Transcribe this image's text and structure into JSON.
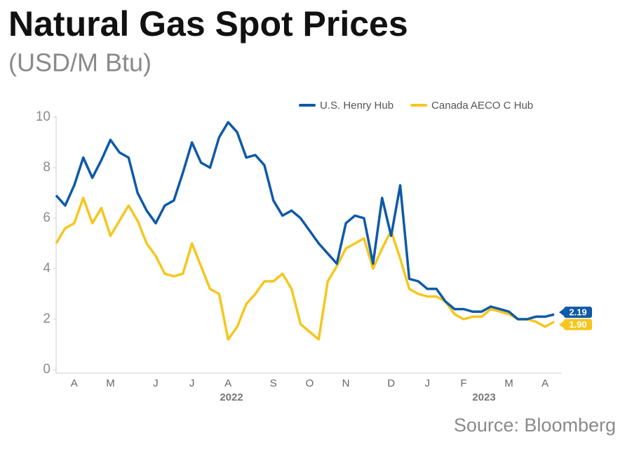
{
  "chart_data": {
    "type": "line",
    "title": "Natural Gas Spot Prices",
    "subtitle": "(USD/M Btu)",
    "source": "Source: Bloomberg",
    "year_labels": [
      "2022",
      "2023"
    ],
    "categories": [
      null,
      null,
      "A",
      null,
      null,
      null,
      "M",
      null,
      null,
      null,
      null,
      "J",
      null,
      null,
      null,
      "J",
      null,
      null,
      null,
      "A",
      null,
      null,
      null,
      null,
      "S",
      null,
      null,
      null,
      "O",
      null,
      null,
      null,
      "N",
      null,
      null,
      null,
      null,
      "D",
      null,
      null,
      null,
      "J",
      null,
      null,
      null,
      "F",
      null,
      null,
      null,
      null,
      "M",
      null,
      null,
      null,
      "A",
      null
    ],
    "series": [
      {
        "name": "U.S. Henry Hub",
        "color": "#0e5aa7",
        "last_value_label": "2.19",
        "values": [
          6.9,
          6.5,
          7.3,
          8.4,
          7.6,
          8.3,
          9.1,
          8.6,
          8.4,
          7.0,
          6.3,
          5.8,
          6.5,
          6.7,
          7.8,
          9.0,
          8.2,
          8.0,
          9.2,
          9.8,
          9.4,
          8.4,
          8.5,
          8.1,
          6.7,
          6.1,
          6.3,
          6.0,
          5.5,
          5.0,
          4.6,
          4.2,
          5.8,
          6.1,
          6.0,
          4.2,
          6.8,
          5.3,
          7.3,
          3.6,
          3.5,
          3.2,
          3.2,
          2.7,
          2.4,
          2.4,
          2.3,
          2.3,
          2.5,
          2.4,
          2.3,
          2.0,
          2.0,
          2.1,
          2.1,
          2.19
        ]
      },
      {
        "name": "Canada AECO C Hub",
        "color": "#f6c61e",
        "last_value_label": "1.90",
        "values": [
          5.0,
          5.6,
          5.8,
          6.8,
          5.8,
          6.4,
          5.3,
          5.9,
          6.5,
          5.9,
          5.0,
          4.5,
          3.8,
          3.7,
          3.8,
          5.0,
          4.1,
          3.2,
          3.0,
          1.2,
          1.7,
          2.6,
          3.0,
          3.5,
          3.5,
          3.8,
          3.2,
          1.8,
          1.5,
          1.2,
          3.5,
          4.1,
          4.8,
          5.0,
          5.2,
          4.0,
          4.8,
          5.5,
          4.4,
          3.2,
          3.0,
          2.9,
          2.9,
          2.7,
          2.2,
          2.0,
          2.1,
          2.1,
          2.4,
          2.3,
          2.2,
          2.0,
          2.0,
          1.9,
          1.7,
          1.9
        ]
      }
    ],
    "ylim": [
      0,
      10
    ],
    "yticks": [
      0,
      2,
      4,
      6,
      8,
      10
    ],
    "grid": false
  }
}
